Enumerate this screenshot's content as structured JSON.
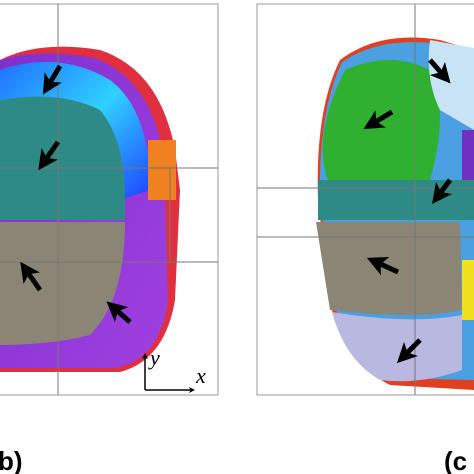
{
  "panels": [
    {
      "label": "b)"
    },
    {
      "label": "(c"
    }
  ],
  "axes": {
    "x": "x",
    "y": "y"
  }
}
